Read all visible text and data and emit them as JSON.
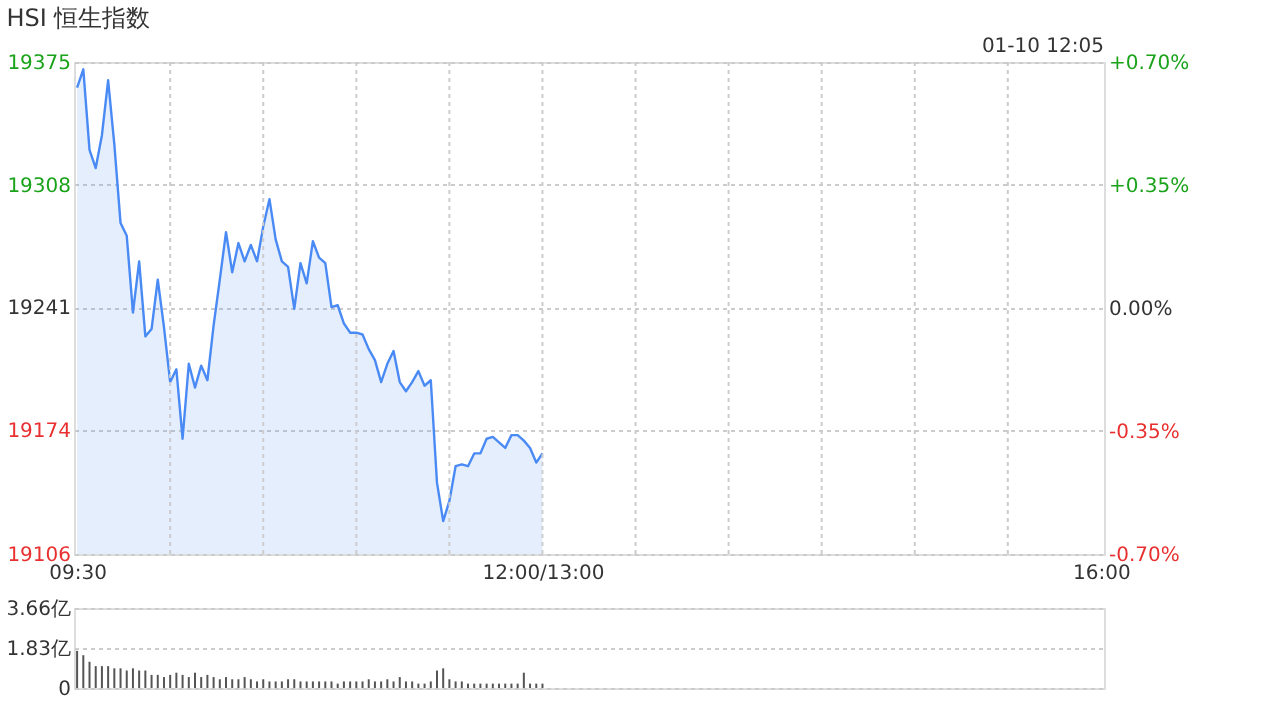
{
  "chart_data": [
    {
      "type": "area",
      "title": "HSI 恒生指数",
      "annotations": [
        "01-10 12:05"
      ],
      "categories": [
        "09:30",
        null,
        null,
        null,
        null,
        null,
        null,
        null,
        null,
        null,
        null,
        null,
        null,
        null,
        null,
        null,
        null,
        null,
        null,
        null,
        null,
        null,
        null,
        null,
        null,
        null,
        null,
        null,
        null,
        null,
        null,
        null,
        null,
        null,
        null,
        null,
        null,
        null,
        null,
        null,
        null,
        null,
        null,
        null,
        null,
        null,
        null,
        null,
        null,
        null,
        null,
        null,
        null,
        null,
        null,
        null,
        null,
        null,
        null,
        null,
        null,
        null,
        null,
        null,
        null,
        null,
        null,
        null,
        null,
        null,
        null,
        null,
        null,
        null,
        null,
        "12:00/13:00",
        null,
        null,
        null,
        null,
        null,
        null,
        null,
        null,
        null,
        null,
        null,
        null,
        null,
        null,
        null,
        null,
        null,
        null,
        null,
        null,
        null,
        null,
        null,
        null,
        null,
        null,
        null,
        null,
        null,
        null,
        null,
        null,
        null,
        null,
        null,
        null,
        null,
        null,
        null,
        null,
        null,
        null,
        null,
        null,
        null,
        null,
        null,
        null,
        null,
        null,
        null,
        null,
        null,
        null,
        null,
        null,
        null,
        null,
        null,
        null,
        null,
        null,
        null,
        null,
        null,
        null,
        null,
        null,
        null,
        null,
        null,
        null,
        null,
        null,
        null,
        null,
        null,
        null,
        null,
        null,
        null,
        null,
        null,
        null,
        null,
        null,
        null,
        null,
        null,
        "16:00"
      ],
      "series": [
        {
          "color": "#4a8af4",
          "values": [
            19361,
            19371,
            19327,
            19317,
            19335,
            19365,
            19330,
            19287,
            19280,
            19238,
            19266,
            19225,
            19229,
            19256,
            19230,
            19200,
            19207,
            19169,
            19210,
            19197,
            19209,
            19201,
            19231,
            19256,
            19282,
            19260,
            19276,
            19266,
            19275,
            19266,
            19285,
            19300,
            19278,
            19266,
            19263,
            19240,
            19265,
            19254,
            19277,
            19268,
            19265,
            19241,
            19242,
            19232,
            19227,
            19227,
            19226,
            19218,
            19212,
            19200,
            19210,
            19217,
            19200,
            19195,
            19200,
            19206,
            19198,
            19201,
            19145,
            19124,
            19135,
            19154,
            19155,
            19154,
            19161,
            19161,
            19169,
            19170,
            19167,
            19164,
            19171,
            19171,
            19168,
            19164,
            19156,
            19161,
            null,
            null,
            null,
            null,
            null,
            null,
            null,
            null,
            null,
            null,
            null,
            null,
            null,
            null,
            null,
            null,
            null,
            null,
            null,
            null,
            null,
            null,
            null,
            null,
            null,
            null,
            null,
            null,
            null,
            null,
            null,
            null,
            null,
            null,
            null,
            null,
            null,
            null,
            null,
            null,
            null,
            null,
            null,
            null,
            null,
            null,
            null,
            null,
            null,
            null,
            null,
            null,
            null,
            null,
            null,
            null,
            null,
            null,
            null,
            null,
            null,
            null,
            null,
            null,
            null,
            null,
            null,
            null,
            null,
            null,
            null,
            null,
            null,
            null,
            null,
            null,
            null,
            null,
            null,
            null,
            null,
            null,
            null,
            null,
            null,
            null,
            null,
            null,
            null,
            null
          ]
        }
      ],
      "ylim": [
        19106,
        19375
      ],
      "yticks": [
        19106,
        19174,
        19241,
        19308,
        19375
      ],
      "y2lim": [
        -0.7,
        0.7
      ],
      "y2ticks": [
        {
          "value": -0.7,
          "label": "-0.70%"
        },
        {
          "value": -0.35,
          "label": "-0.35%"
        },
        {
          "value": 0,
          "label": "0.00%"
        },
        {
          "value": 0.35,
          "label": "+0.35%"
        },
        {
          "value": 0.7,
          "label": "+0.70%"
        }
      ],
      "grid": true
    },
    {
      "type": "bar",
      "color": "#555555",
      "grid": "y",
      "categories": [
        null,
        null,
        null,
        null,
        null,
        null,
        null,
        null,
        null,
        null,
        null,
        null,
        null,
        null,
        null,
        null,
        null,
        null,
        null,
        null,
        null,
        null,
        null,
        null,
        null,
        null,
        null,
        null,
        null,
        null,
        null,
        null,
        null,
        null,
        null,
        null,
        null,
        null,
        null,
        null,
        null,
        null,
        null,
        null,
        null,
        null,
        null,
        null,
        null,
        null,
        null,
        null,
        null,
        null,
        null,
        null,
        null,
        null,
        null,
        null,
        null,
        null,
        null,
        null,
        null,
        null,
        null,
        null,
        null,
        null,
        null,
        null,
        null,
        null,
        null,
        null,
        null,
        null,
        null,
        null,
        null,
        null,
        null,
        null,
        null,
        null,
        null,
        null,
        null,
        null,
        null,
        null,
        null,
        null,
        null,
        null,
        null,
        null,
        null,
        null,
        null,
        null,
        null,
        null,
        null,
        null,
        null,
        null,
        null,
        null,
        null,
        null,
        null,
        null,
        null,
        null,
        null,
        null,
        null,
        null,
        null,
        null,
        null,
        null,
        null,
        null,
        null,
        null,
        null,
        null,
        null,
        null,
        null,
        null,
        null,
        null,
        null,
        null,
        null,
        null,
        null,
        null,
        null,
        null,
        null,
        null,
        null,
        null,
        null,
        null,
        null,
        null,
        null,
        null,
        null,
        null,
        null,
        null,
        null,
        null,
        null,
        null,
        null,
        null,
        null,
        null
      ],
      "values": [
        1.7,
        1.5,
        1.2,
        1.0,
        1.0,
        1.0,
        0.9,
        0.9,
        0.8,
        0.9,
        0.8,
        0.8,
        0.6,
        0.6,
        0.5,
        0.6,
        0.7,
        0.6,
        0.5,
        0.7,
        0.5,
        0.6,
        0.5,
        0.4,
        0.5,
        0.4,
        0.4,
        0.5,
        0.4,
        0.3,
        0.4,
        0.3,
        0.3,
        0.3,
        0.4,
        0.4,
        0.3,
        0.3,
        0.3,
        0.3,
        0.3,
        0.3,
        0.2,
        0.3,
        0.3,
        0.3,
        0.3,
        0.4,
        0.3,
        0.3,
        0.4,
        0.3,
        0.5,
        0.3,
        0.3,
        0.2,
        0.2,
        0.3,
        0.8,
        0.9,
        0.4,
        0.3,
        0.3,
        0.2,
        0.2,
        0.2,
        0.2,
        0.2,
        0.2,
        0.2,
        0.2,
        0.2,
        0.7,
        0.2,
        0.2,
        0.2,
        null,
        null,
        null,
        null,
        null,
        null,
        null,
        null,
        null,
        null,
        null,
        null,
        null,
        null,
        null,
        null,
        null,
        null,
        null,
        null,
        null,
        null,
        null,
        null,
        null,
        null,
        null,
        null,
        null,
        null,
        null,
        null,
        null,
        null,
        null,
        null,
        null,
        null,
        null,
        null,
        null,
        null,
        null,
        null,
        null,
        null,
        null,
        null,
        null,
        null,
        null,
        null,
        null,
        null,
        null,
        null,
        null,
        null,
        null,
        null,
        null,
        null,
        null,
        null,
        null,
        null,
        null,
        null,
        null,
        null,
        null,
        null,
        null,
        null,
        null,
        null,
        null,
        null,
        null,
        null,
        null,
        null,
        null,
        null,
        null,
        null,
        null,
        null,
        null,
        null
      ],
      "ylim": [
        0,
        3.66
      ],
      "yticks": [
        {
          "value": 0,
          "label": "0"
        },
        {
          "value": 1.83,
          "label": "1.83亿"
        },
        {
          "value": 3.66,
          "label": "3.66亿"
        }
      ]
    }
  ]
}
